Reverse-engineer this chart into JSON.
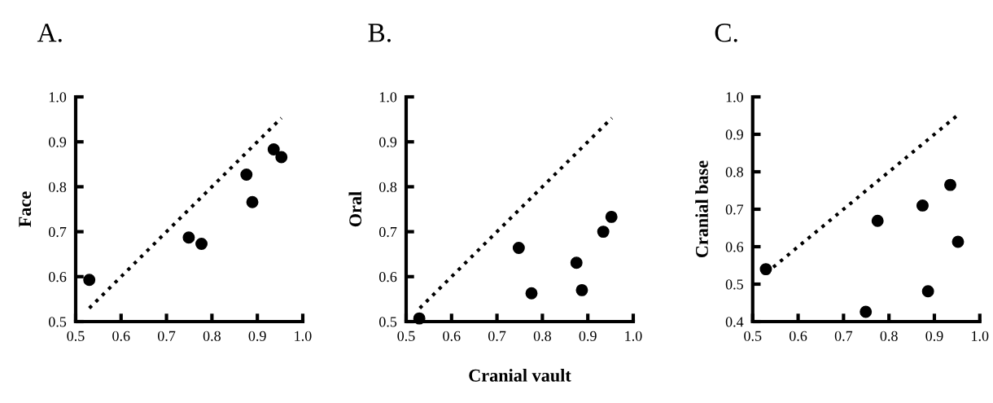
{
  "chart_data": [
    {
      "type": "scatter",
      "title": "A.",
      "ylabel": "Face",
      "xlim": [
        0.5,
        1.0
      ],
      "ylim": [
        0.5,
        1.0
      ],
      "xticks": [
        {
          "value": 0.5,
          "label": "0.5"
        },
        {
          "value": 0.6,
          "label": "0.6"
        },
        {
          "value": 0.7,
          "label": "0.7"
        },
        {
          "value": 0.8,
          "label": "0.8"
        },
        {
          "value": 0.9,
          "label": "0.9"
        },
        {
          "value": 1.0,
          "label": "1.0"
        }
      ],
      "yticks": [
        {
          "value": 0.5,
          "label": "0.5"
        },
        {
          "value": 0.6,
          "label": "0.6"
        },
        {
          "value": 0.7,
          "label": "0.7"
        },
        {
          "value": 0.8,
          "label": "0.8"
        },
        {
          "value": 0.9,
          "label": "0.9"
        },
        {
          "value": 1.0,
          "label": "1.0"
        }
      ],
      "grid": false,
      "legend": false,
      "series": [
        {
          "marker": "circle",
          "color": "#000000",
          "x": [
            0.53,
            0.749,
            0.777,
            0.876,
            0.889,
            0.936,
            0.953
          ],
          "values": [
            0.593,
            0.687,
            0.673,
            0.827,
            0.766,
            0.883,
            0.866
          ]
        },
        {
          "type": "line",
          "color": "#000000",
          "line_style": "dotted",
          "x": [
            0.53,
            0.953
          ],
          "values": [
            0.53,
            0.953
          ]
        }
      ]
    },
    {
      "type": "scatter",
      "title": "B.",
      "ylabel": "Oral",
      "xlabel": "Cranial vault",
      "xlim": [
        0.5,
        1.0
      ],
      "ylim": [
        0.5,
        1.0
      ],
      "xticks": [
        {
          "value": 0.5,
          "label": "0.5"
        },
        {
          "value": 0.6,
          "label": "0.6"
        },
        {
          "value": 0.7,
          "label": "0.7"
        },
        {
          "value": 0.8,
          "label": "0.8"
        },
        {
          "value": 0.9,
          "label": "0.9"
        },
        {
          "value": 1.0,
          "label": "1.0"
        }
      ],
      "yticks": [
        {
          "value": 0.5,
          "label": "0.5"
        },
        {
          "value": 0.6,
          "label": "0.6"
        },
        {
          "value": 0.7,
          "label": "0.7"
        },
        {
          "value": 0.8,
          "label": "0.8"
        },
        {
          "value": 0.9,
          "label": "0.9"
        },
        {
          "value": 1.0,
          "label": "1.0"
        }
      ],
      "grid": false,
      "legend": false,
      "series": [
        {
          "marker": "circle",
          "color": "#000000",
          "x": [
            0.529,
            0.748,
            0.776,
            0.875,
            0.887,
            0.934,
            0.952
          ],
          "values": [
            0.507,
            0.664,
            0.563,
            0.631,
            0.57,
            0.7,
            0.733
          ]
        },
        {
          "type": "line",
          "color": "#000000",
          "line_style": "dotted",
          "x": [
            0.53,
            0.953
          ],
          "values": [
            0.53,
            0.953
          ]
        }
      ]
    },
    {
      "type": "scatter",
      "title": "C.",
      "ylabel": "Cranial base",
      "xlim": [
        0.5,
        1.0
      ],
      "ylim": [
        0.4,
        1.0
      ],
      "xticks": [
        {
          "value": 0.5,
          "label": "0.5"
        },
        {
          "value": 0.6,
          "label": "0.6"
        },
        {
          "value": 0.7,
          "label": "0.7"
        },
        {
          "value": 0.8,
          "label": "0.8"
        },
        {
          "value": 0.9,
          "label": "0.9"
        },
        {
          "value": 1.0,
          "label": "1.0"
        }
      ],
      "yticks": [
        {
          "value": 0.4,
          "label": "0.4"
        },
        {
          "value": 0.5,
          "label": "0.5"
        },
        {
          "value": 0.6,
          "label": "0.6"
        },
        {
          "value": 0.7,
          "label": "0.7"
        },
        {
          "value": 0.8,
          "label": "0.8"
        },
        {
          "value": 0.9,
          "label": "0.9"
        },
        {
          "value": 1.0,
          "label": "1.0"
        }
      ],
      "grid": false,
      "legend": false,
      "series": [
        {
          "marker": "circle",
          "color": "#000000",
          "x": [
            0.529,
            0.749,
            0.775,
            0.874,
            0.886,
            0.935,
            0.952
          ],
          "values": [
            0.54,
            0.426,
            0.669,
            0.71,
            0.481,
            0.765,
            0.613
          ]
        },
        {
          "type": "line",
          "color": "#000000",
          "line_style": "dotted",
          "x": [
            0.53,
            0.952
          ],
          "values": [
            0.53,
            0.952
          ]
        }
      ]
    }
  ]
}
